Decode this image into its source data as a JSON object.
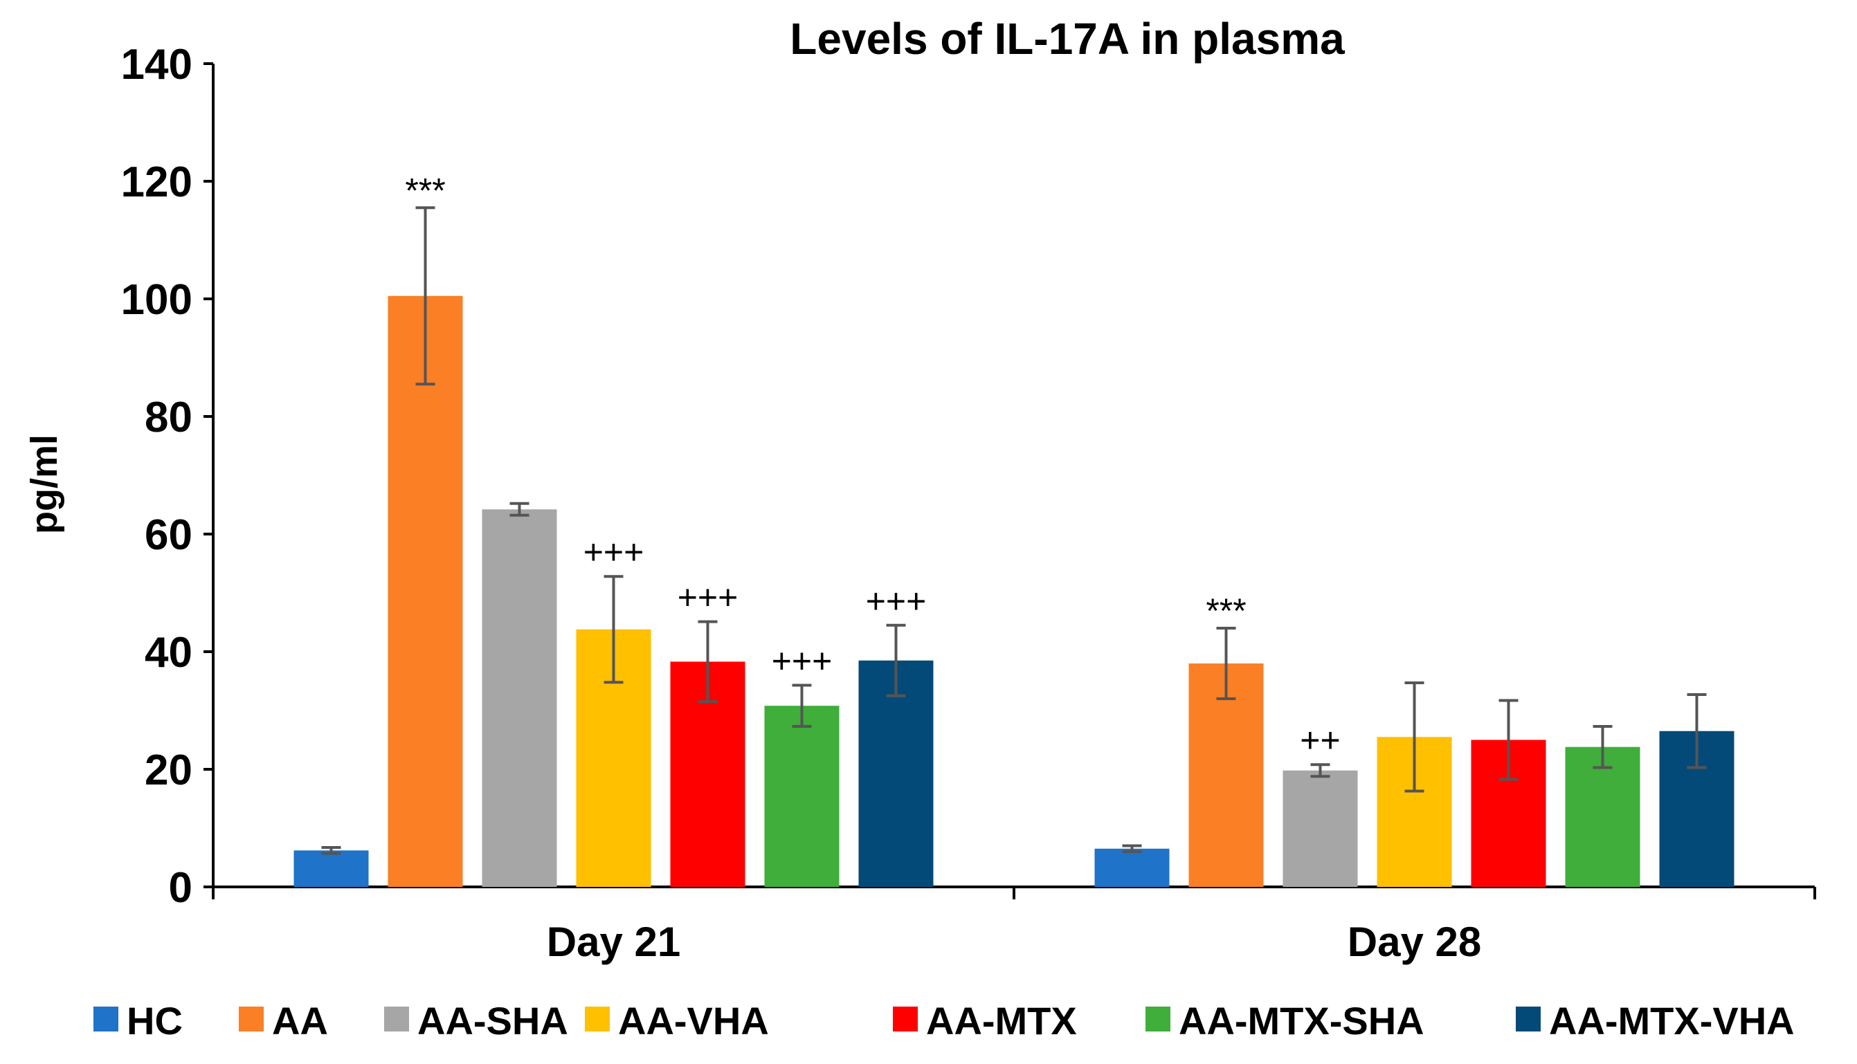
{
  "chart_data": {
    "type": "bar",
    "title": "Levels of IL-17A in plasma",
    "xlabel": "",
    "ylabel": "pg/ml",
    "ylim": [
      0,
      140
    ],
    "yticks": [
      "0",
      "20",
      "40",
      "60",
      "80",
      "100",
      "120",
      "140"
    ],
    "yticks_values": [
      0,
      20,
      40,
      60,
      80,
      100,
      120,
      140
    ],
    "categories": [
      "Day 21",
      "Day 28"
    ],
    "grid": false,
    "legend_position": "bottom",
    "series": [
      {
        "name": "HC",
        "color": "#1f73c8",
        "values": [
          6.2,
          6.5
        ],
        "errors": [
          0.5,
          0.5
        ],
        "annotations": [
          "",
          ""
        ]
      },
      {
        "name": "AA",
        "color": "#fb7f24",
        "values": [
          100.5,
          38.0
        ],
        "errors": [
          15.0,
          6.0
        ],
        "annotations": [
          "***",
          "***"
        ]
      },
      {
        "name": "AA-SHA",
        "color": "#a6a6a6",
        "values": [
          64.2,
          19.8
        ],
        "errors": [
          1.0,
          1.0
        ],
        "annotations": [
          "",
          "++"
        ]
      },
      {
        "name": "AA-VHA",
        "color": "#ffc000",
        "values": [
          43.8,
          25.5
        ],
        "errors": [
          9.0,
          9.2
        ],
        "annotations": [
          "+++",
          ""
        ]
      },
      {
        "name": "AA-MTX",
        "color": "#ff0000",
        "values": [
          38.3,
          25.0
        ],
        "errors": [
          6.8,
          6.7
        ],
        "annotations": [
          "+++",
          ""
        ]
      },
      {
        "name": "AA-MTX-SHA",
        "color": "#3fae3a",
        "values": [
          30.8,
          23.8
        ],
        "errors": [
          3.5,
          3.5
        ],
        "annotations": [
          "+++",
          ""
        ]
      },
      {
        "name": "AA-MTX-VHA",
        "color": "#044a78",
        "values": [
          38.5,
          26.5
        ],
        "errors": [
          6.0,
          6.2
        ],
        "annotations": [
          "+++",
          ""
        ]
      }
    ]
  }
}
